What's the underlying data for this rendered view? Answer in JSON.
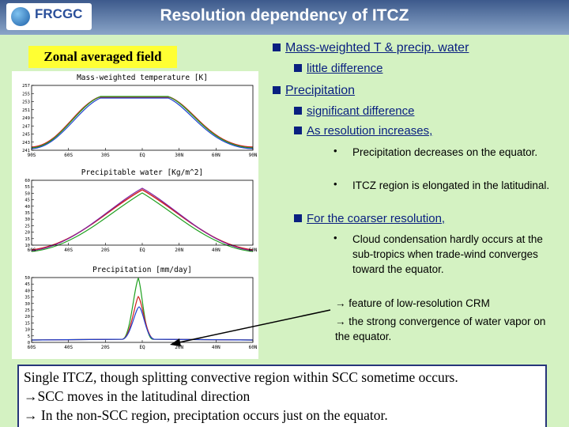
{
  "header": {
    "title": "Resolution dependency of ITCZ",
    "logo": "FRCGC"
  },
  "label": "Zonal averaged field",
  "figure": {
    "panels": [
      {
        "title": "Mass-weighted temperature [K]",
        "yticks": [
          241,
          243,
          245,
          247,
          249,
          251,
          253,
          255,
          257
        ],
        "xticks": [
          "90S",
          "60S",
          "30S",
          "EQ",
          "30N",
          "60N",
          "90N"
        ]
      },
      {
        "title": "Precipitable water [Kg/m^2]",
        "yticks": [
          10,
          15,
          20,
          25,
          30,
          35,
          40,
          45,
          50,
          55,
          60
        ],
        "xticks": [
          "60S",
          "40S",
          "20S",
          "EQ",
          "20N",
          "40N",
          "60N"
        ]
      },
      {
        "title": "Precipitation [mm/day]",
        "yticks": [
          0,
          5,
          10,
          15,
          20,
          25,
          30,
          35,
          40,
          45,
          50
        ],
        "xticks": [
          "60S",
          "40S",
          "20S",
          "EQ",
          "20N",
          "40N",
          "60N"
        ]
      }
    ]
  },
  "sections": [
    {
      "heading": "Mass-weighted T & precip. water",
      "items": [
        "little difference"
      ]
    },
    {
      "heading": "Precipitation",
      "items": [
        "significant difference",
        "As resolution increases,"
      ],
      "bullets": [
        "Precipitation decreases on the equator.",
        "ITCZ region is elongated in the latitudinal."
      ]
    },
    {
      "heading": "For the coarser resolution,",
      "bullets": [
        "Cloud condensation hardly occurs at the sub-tropics when trade-wind converges toward the equator."
      ],
      "arrows": [
        "→ feature of low-resolution CRM",
        "→  the strong convergence of water vapor on the equator."
      ]
    }
  ],
  "summary": [
    "Single ITCZ, though splitting convective region within SCC sometime occurs.",
    "→SCC moves in the latitudinal direction",
    "→ In the non-SCC region, preciptation occurs just on the equator."
  ]
}
